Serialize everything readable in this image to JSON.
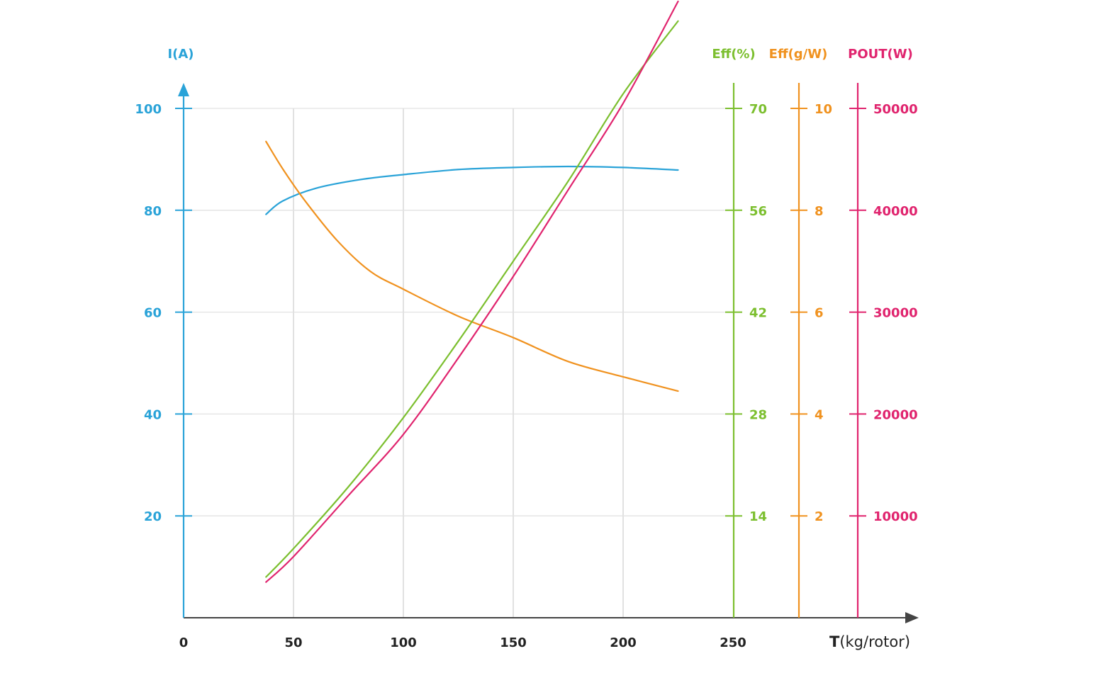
{
  "chart_data": {
    "type": "line",
    "x": {
      "label_bold": "T",
      "label_rest": "(kg/rotor)",
      "ticks": [
        "0",
        "50",
        "100",
        "150",
        "200",
        "250"
      ],
      "tick_values": [
        0,
        50,
        100,
        150,
        200,
        250
      ],
      "range": [
        0,
        270
      ]
    },
    "axes": [
      {
        "id": "current",
        "title": "I(A)",
        "color": "#2aa3d8",
        "range": [
          0,
          100
        ],
        "ticks": [
          "20",
          "40",
          "60",
          "80",
          "100"
        ],
        "tick_values": [
          20,
          40,
          60,
          80,
          100
        ]
      },
      {
        "id": "eff_pct",
        "title": "Eff(%)",
        "color": "#7cbf2f",
        "range": [
          0,
          70
        ],
        "ticks": [
          "14",
          "28",
          "42",
          "56",
          "70"
        ],
        "tick_values": [
          14,
          28,
          42,
          56,
          70
        ]
      },
      {
        "id": "eff_gw",
        "title": "Eff(g/W)",
        "color": "#f0921f",
        "range": [
          0,
          10
        ],
        "ticks": [
          "2",
          "4",
          "6",
          "8",
          "10"
        ],
        "tick_values": [
          2,
          4,
          6,
          8,
          10
        ]
      },
      {
        "id": "pout",
        "title": "POUT(W)",
        "color": "#e0246e",
        "range": [
          0,
          50000
        ],
        "ticks": [
          "10000",
          "20000",
          "30000",
          "40000",
          "50000"
        ],
        "tick_values": [
          10000,
          20000,
          30000,
          40000,
          50000
        ]
      }
    ],
    "series": [
      {
        "axis": "current",
        "color": "#2aa3d8",
        "points": [
          [
            37.5,
            79.2
          ],
          [
            45,
            81.8
          ],
          [
            60,
            84.3
          ],
          [
            80,
            86.0
          ],
          [
            100,
            87.0
          ],
          [
            125,
            88.0
          ],
          [
            150,
            88.4
          ],
          [
            175,
            88.6
          ],
          [
            200,
            88.4
          ],
          [
            225,
            87.9
          ]
        ]
      },
      {
        "axis": "eff_gw",
        "color": "#f0921f",
        "points": [
          [
            37.5,
            9.35
          ],
          [
            45,
            8.82
          ],
          [
            55,
            8.2
          ],
          [
            70,
            7.4
          ],
          [
            85,
            6.8
          ],
          [
            100,
            6.45
          ],
          [
            125,
            5.92
          ],
          [
            150,
            5.5
          ],
          [
            175,
            5.03
          ],
          [
            200,
            4.73
          ],
          [
            225,
            4.45
          ]
        ]
      },
      {
        "axis": "eff_pct",
        "color": "#7cbf2f",
        "points": [
          [
            37.5,
            5.6
          ],
          [
            50,
            9.5
          ],
          [
            75,
            18.0
          ],
          [
            100,
            27.5
          ],
          [
            125,
            38.0
          ],
          [
            150,
            49.0
          ],
          [
            175,
            60.0
          ],
          [
            200,
            72.0
          ],
          [
            225,
            82.0
          ]
        ]
      },
      {
        "axis": "pout",
        "color": "#e0246e",
        "points": [
          [
            37.5,
            3500
          ],
          [
            50,
            6000
          ],
          [
            75,
            12000
          ],
          [
            100,
            18000
          ],
          [
            125,
            25500
          ],
          [
            150,
            33500
          ],
          [
            175,
            42000
          ],
          [
            200,
            50500
          ],
          [
            225,
            60500
          ]
        ]
      }
    ],
    "grid": true,
    "legend": "none"
  }
}
